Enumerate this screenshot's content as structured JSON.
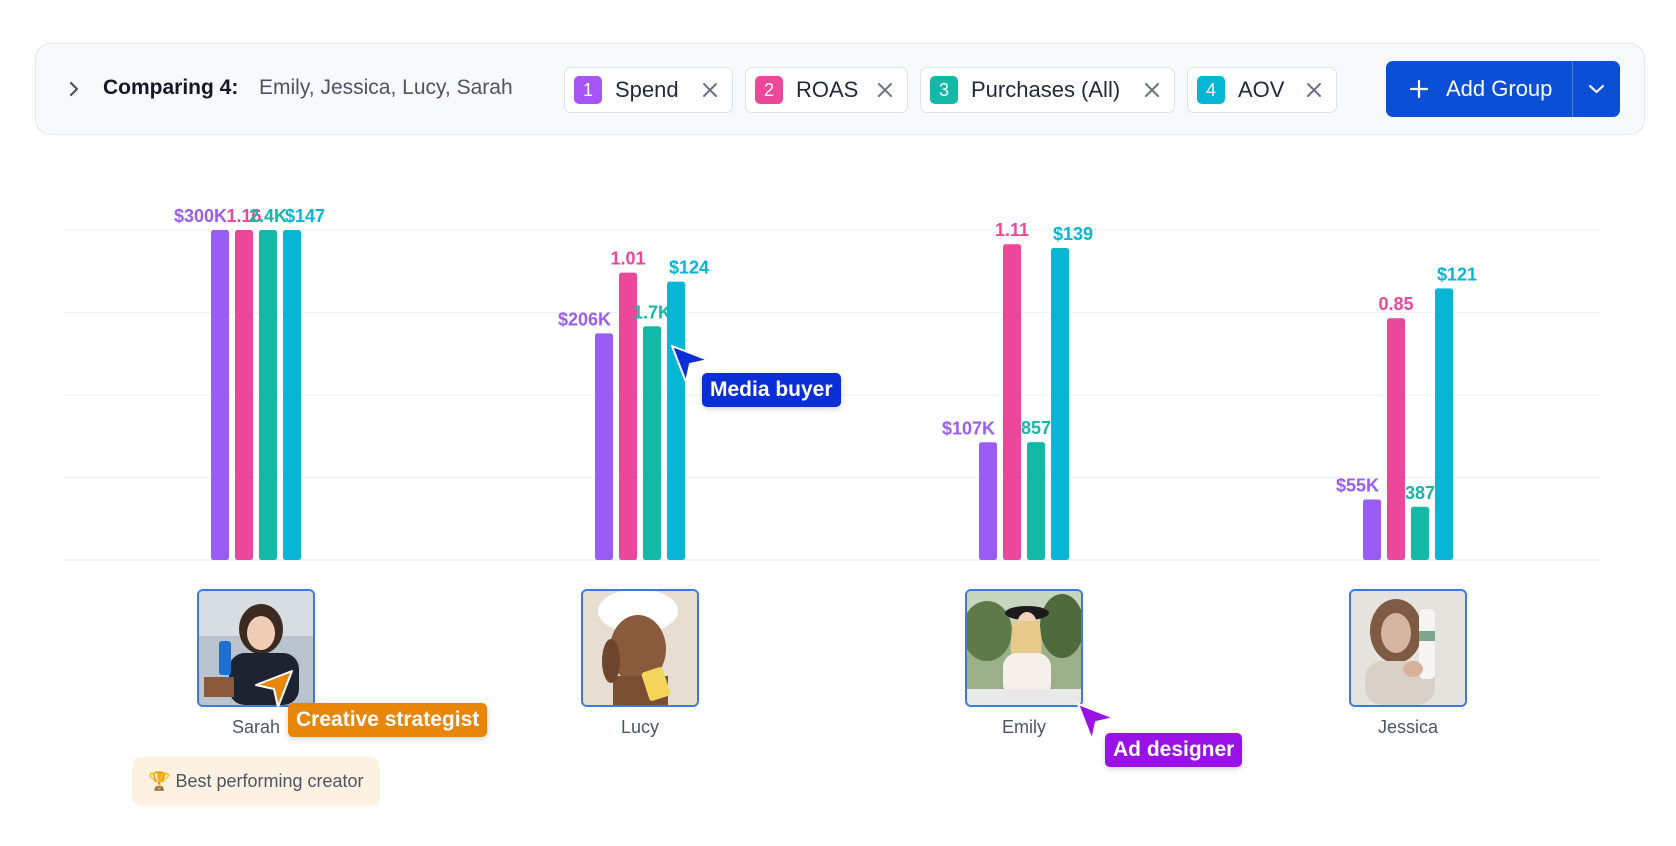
{
  "toolbar": {
    "comparing_label": "Comparing 4:",
    "comparing_names": "Emily, Jessica, Lucy, Sarah",
    "metrics": [
      {
        "badge": "1",
        "label": "Spend",
        "color": "#a855f7"
      },
      {
        "badge": "2",
        "label": "ROAS",
        "color": "#ec4899"
      },
      {
        "badge": "3",
        "label": "Purchases (All)",
        "color": "#14b8a6"
      },
      {
        "badge": "4",
        "label": "AOV",
        "color": "#06b6d4"
      }
    ],
    "add_group_label": "Add Group",
    "icons": {
      "expand": "chevron-right-icon",
      "remove": "close-icon",
      "add": "plus-icon",
      "menu": "chevron-down-icon"
    }
  },
  "chart_data": {
    "type": "bar",
    "categories": [
      "Sarah",
      "Lucy",
      "Emily",
      "Jessica"
    ],
    "normalization": "each metric normalized to its maximum across creators",
    "grid": true,
    "series": [
      {
        "name": "Spend",
        "color": "#9b5cf6",
        "values": [
          300000,
          206000,
          107000,
          55000
        ],
        "labels": [
          "$300K",
          "$206K",
          "$107K",
          "$55K"
        ]
      },
      {
        "name": "ROAS",
        "color": "#ec4899",
        "values": [
          1.16,
          1.01,
          1.11,
          0.85
        ],
        "labels": [
          "1.16",
          "1.01",
          "1.11",
          "0.85"
        ]
      },
      {
        "name": "Purchases (All)",
        "color": "#14b8a6",
        "values": [
          2400,
          1700,
          857,
          387
        ],
        "labels": [
          "2.4K",
          "1.7K",
          "857",
          "387"
        ]
      },
      {
        "name": "AOV",
        "color": "#06b6d4",
        "values": [
          147,
          124,
          139,
          121
        ],
        "labels": [
          "$147",
          "$124",
          "$139",
          "$121"
        ]
      }
    ]
  },
  "creators": [
    {
      "name": "Sarah"
    },
    {
      "name": "Lucy"
    },
    {
      "name": "Emily"
    },
    {
      "name": "Jessica"
    }
  ],
  "collaborators": [
    {
      "label": "Media buyer",
      "color": "#0b2fd6"
    },
    {
      "label": "Creative strategist",
      "color": "#e8860a"
    },
    {
      "label": "Ad designer",
      "color": "#9a12e8"
    }
  ],
  "best_note": {
    "icon": "trophy-icon",
    "text": "Best performing creator"
  }
}
